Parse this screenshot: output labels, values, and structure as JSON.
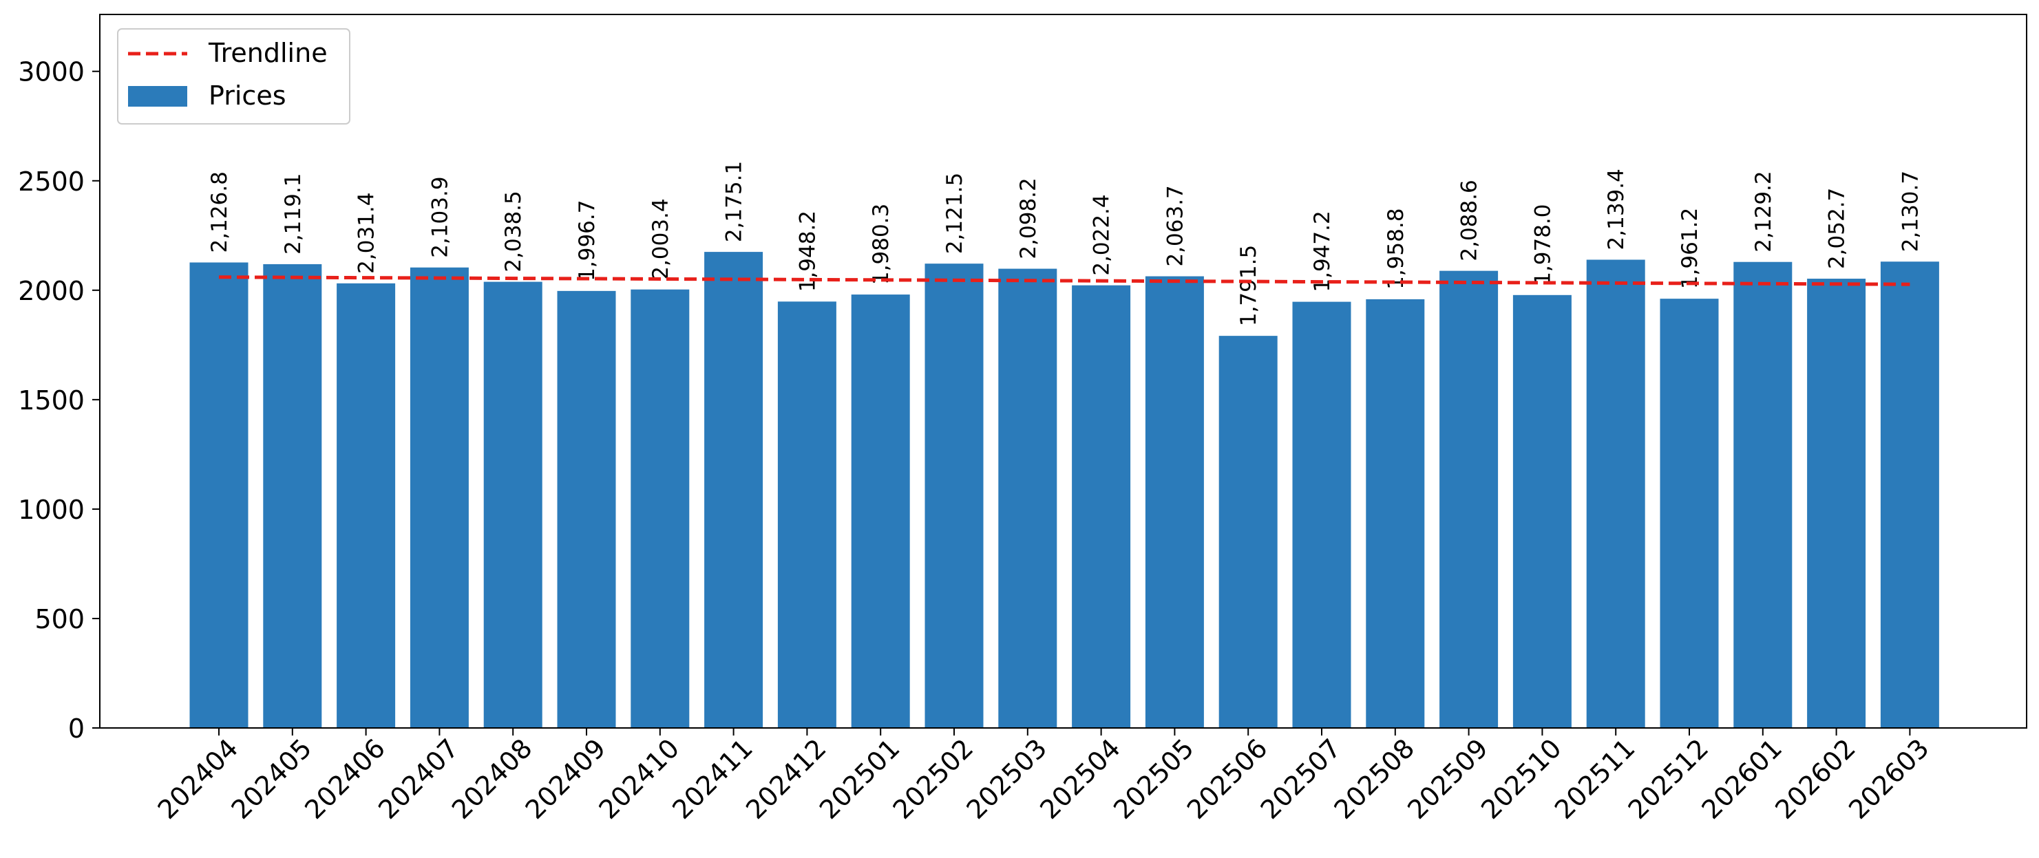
{
  "chart_data": {
    "type": "bar",
    "categories": [
      "202404",
      "202405",
      "202406",
      "202407",
      "202408",
      "202409",
      "202410",
      "202411",
      "202412",
      "202501",
      "202502",
      "202503",
      "202504",
      "202505",
      "202506",
      "202507",
      "202508",
      "202509",
      "202510",
      "202511",
      "202512",
      "202601",
      "202602",
      "202603"
    ],
    "series": [
      {
        "name": "Prices",
        "color": "#2b7bba",
        "values": [
          2126.8,
          2119.1,
          2031.4,
          2103.9,
          2038.5,
          1996.7,
          2003.4,
          2175.1,
          1948.2,
          1980.3,
          2121.5,
          2098.2,
          2022.4,
          2063.7,
          1791.5,
          1947.2,
          1958.8,
          2088.6,
          1978.0,
          2139.4,
          1961.2,
          2129.2,
          2052.7,
          2130.7
        ],
        "labels": [
          "2,126.8",
          "2,119.1",
          "2,031.4",
          "2,103.9",
          "2,038.5",
          "1,996.7",
          "2,003.4",
          "2,175.1",
          "1,948.2",
          "1,980.3",
          "2,121.5",
          "2,098.2",
          "2,022.4",
          "2,063.7",
          "1,791.5",
          "1,947.2",
          "1,958.8",
          "2,088.6",
          "1,978.0",
          "2,139.4",
          "1,961.2",
          "2,129.2",
          "2,052.7",
          "2,130.7"
        ]
      }
    ],
    "trendline": {
      "name": "Trendline",
      "color": "#e8201a",
      "style": "dashed",
      "start": 2060,
      "end": 2027
    },
    "title": "",
    "xlabel": "",
    "ylabel": "",
    "ylim": [
      0,
      3260
    ],
    "yticks": [
      "0",
      "500",
      "1000",
      "1500",
      "2000",
      "2500",
      "3000"
    ],
    "ytick_values": [
      0,
      500,
      1000,
      1500,
      2000,
      2500,
      3000
    ],
    "grid": false,
    "legend": {
      "position": "top-left",
      "entries": [
        "Trendline",
        "Prices"
      ]
    }
  }
}
